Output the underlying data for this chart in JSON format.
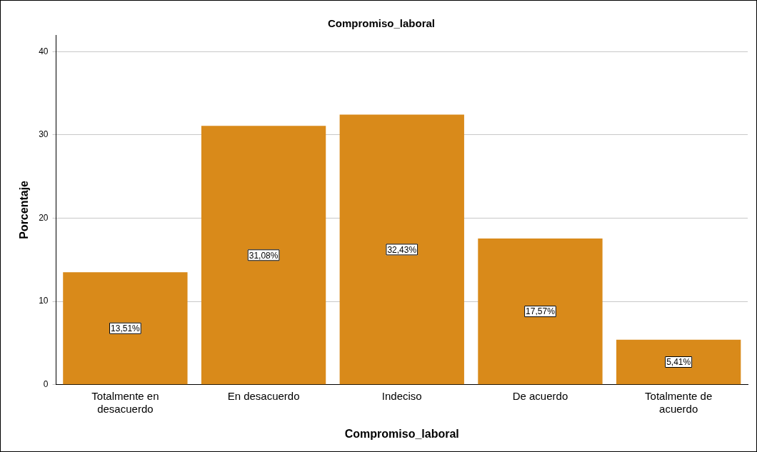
{
  "chart_data": {
    "type": "bar",
    "title": "Compromiso_laboral",
    "xlabel": "Compromiso_laboral",
    "ylabel": "Porcentaje",
    "categories": [
      "Totalmente en desacuerdo",
      "En desacuerdo",
      "Indeciso",
      "De acuerdo",
      "Totalmente de acuerdo"
    ],
    "values": [
      13.51,
      31.08,
      32.43,
      17.57,
      5.41
    ],
    "value_labels": [
      "13,51%",
      "31,08%",
      "32,43%",
      "17,57%",
      "5,41%"
    ],
    "color": "#d98a1a",
    "ylim": [
      0,
      42
    ],
    "yticks": [
      0,
      10,
      20,
      30,
      40
    ],
    "grid": "y",
    "legend": false
  }
}
